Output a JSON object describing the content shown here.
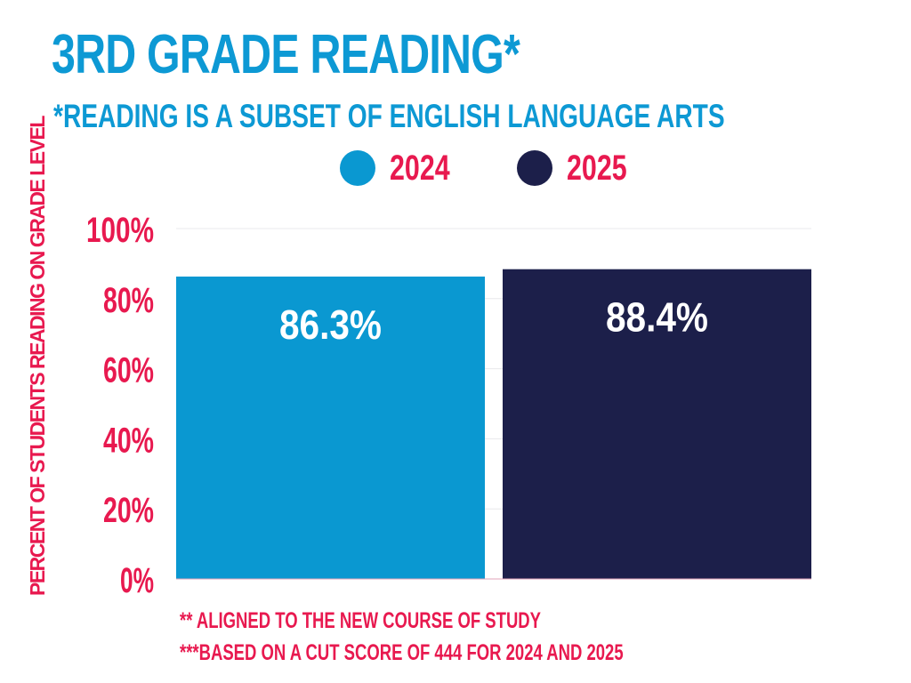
{
  "title": "3RD GRADE READING*",
  "subtitle": "*READING IS A SUBSET OF ENGLISH LANGUAGE ARTS",
  "notes": [
    "** ALIGNED TO THE NEW COURSE OF STUDY",
    "***BASED ON A CUT SCORE OF 444 FOR 2024 AND 2025"
  ],
  "chart_data": {
    "type": "bar",
    "ylabel": "PERCENT OF STUDENTS READING ON GRADE LEVEL",
    "xlabel": "",
    "ylim": [
      0,
      100
    ],
    "yticks": [
      0,
      20,
      40,
      60,
      80,
      100
    ],
    "ytick_labels": [
      "0%",
      "20%",
      "40%",
      "60%",
      "80%",
      "100%"
    ],
    "grid": true,
    "legend_position": "top",
    "series": [
      {
        "name": "2024",
        "value": 86.3,
        "label": "86.3%",
        "color": "#0a98d1"
      },
      {
        "name": "2025",
        "value": 88.4,
        "label": "88.4%",
        "color": "#1c1f4a"
      }
    ]
  }
}
